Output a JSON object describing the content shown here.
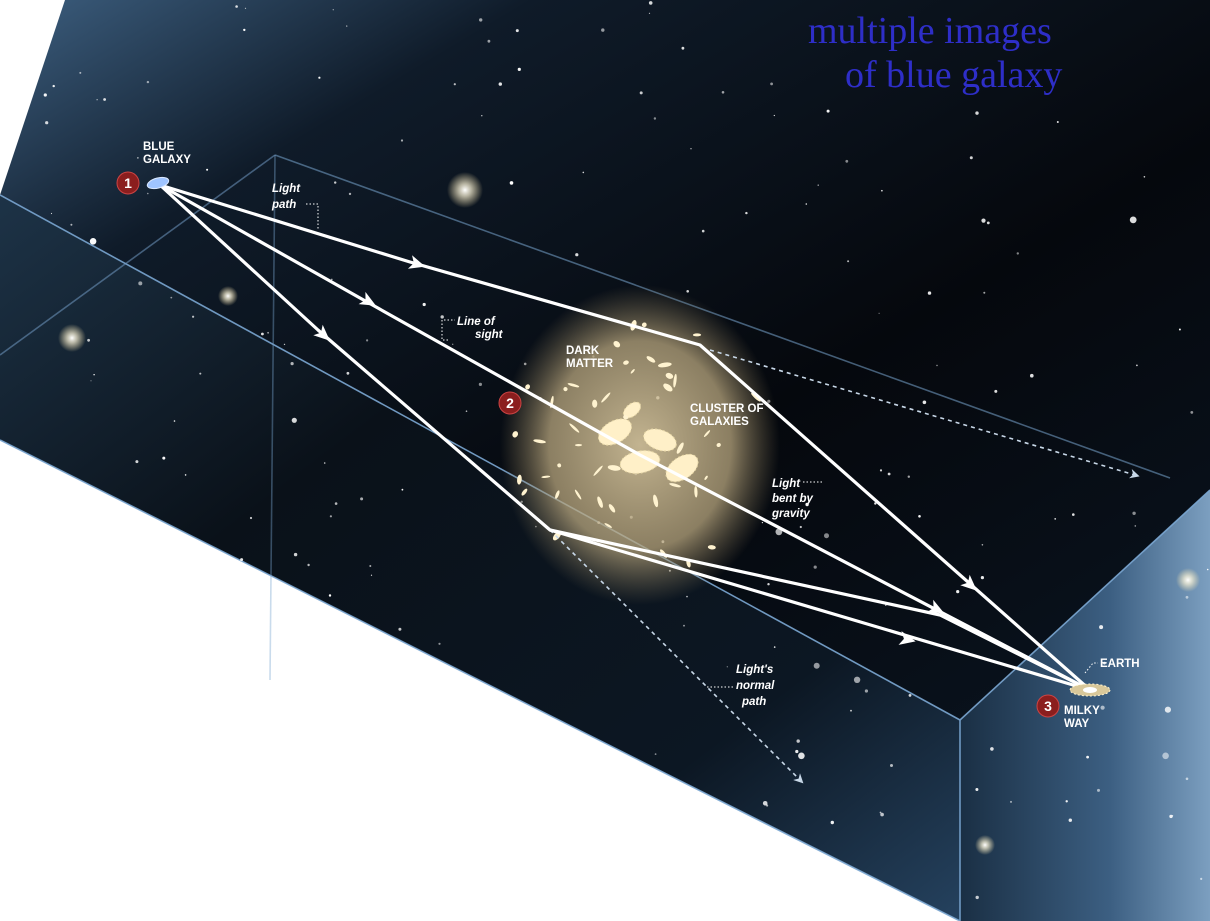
{
  "caption": {
    "line1": "multiple images",
    "line2": "of blue galaxy"
  },
  "labels": {
    "blue_galaxy_1": "BLUE",
    "blue_galaxy_2": "GALAXY",
    "light_path_1": "Light",
    "light_path_2": "path",
    "line_of_sight_1": "Line of",
    "line_of_sight_2": "sight",
    "dark_matter_1": "DARK",
    "dark_matter_2": "MATTER",
    "cluster_1": "CLUSTER OF",
    "cluster_2": "GALAXIES",
    "bent_1": "Light",
    "bent_2": "bent by",
    "bent_3": "gravity",
    "normal_1": "Light's",
    "normal_2": "normal",
    "normal_3": "path",
    "earth": "EARTH",
    "milky_way_1": "MILKY",
    "milky_way_2": "WAY"
  },
  "markers": {
    "m1": "1",
    "m2": "2",
    "m3": "3"
  },
  "colors": {
    "caption": "#2e2ec8",
    "marker": "#8b1e1e",
    "space": "#05080d",
    "box_edge": "#6f9cc9",
    "halo": "#cfbe96"
  }
}
